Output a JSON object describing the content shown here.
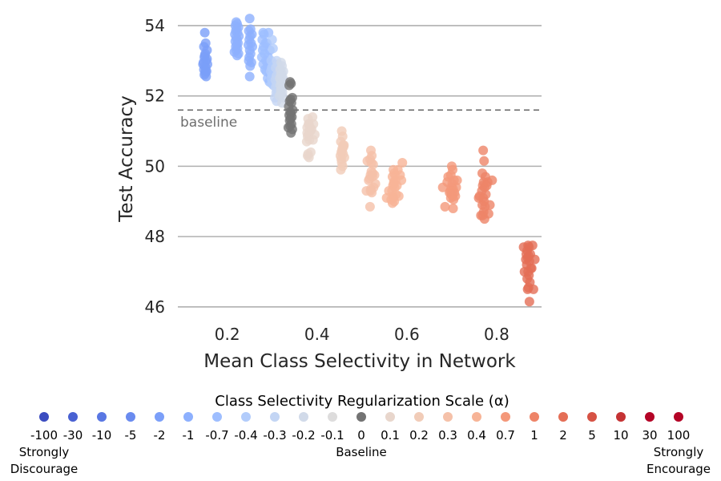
{
  "chart_data": {
    "type": "scatter",
    "xlabel": "Mean Class Selectivity in Network",
    "ylabel": "Test Accuracy",
    "xlim": [
      0.09,
      0.9
    ],
    "ylim": [
      45.7,
      54.5
    ],
    "xticks": [
      0.2,
      0.4,
      0.6,
      0.8
    ],
    "yticks": [
      46,
      48,
      50,
      52,
      54
    ],
    "grid": "horizontal",
    "baseline": {
      "value": 51.6,
      "label": "baseline"
    },
    "legend": {
      "title": "Class Selectivity Regularization Scale (α)",
      "placement": "bottom",
      "left_note": [
        "Strongly",
        "Discourage"
      ],
      "center_note": "Baseline",
      "right_note": [
        "Strongly",
        "Encourage"
      ]
    },
    "series": [
      {
        "name": "-100",
        "color": "#3b4cc0",
        "x": [],
        "y": []
      },
      {
        "name": "-30",
        "color": "#4961d2",
        "x": [],
        "y": []
      },
      {
        "name": "-10",
        "color": "#5977e3",
        "x": [],
        "y": []
      },
      {
        "name": "-5",
        "color": "#6a8bef",
        "x": [],
        "y": []
      },
      {
        "name": "-2",
        "color": "#7b9ff9",
        "x": [
          0.15,
          0.152,
          0.148,
          0.155,
          0.151,
          0.149,
          0.153,
          0.147,
          0.156,
          0.15,
          0.152,
          0.148,
          0.154,
          0.151,
          0.149,
          0.153,
          0.15,
          0.146,
          0.155,
          0.152
        ],
        "y": [
          53.8,
          53.5,
          53.4,
          53.3,
          53.2,
          53.1,
          53.0,
          52.95,
          52.9,
          52.85,
          52.8,
          52.75,
          52.7,
          52.65,
          52.6,
          52.55,
          53.15,
          52.9,
          53.05,
          52.7
        ]
      },
      {
        "name": "-1",
        "color": "#8db0fe",
        "x": [
          0.22,
          0.222,
          0.218,
          0.225,
          0.221,
          0.219,
          0.223,
          0.217,
          0.226,
          0.22,
          0.222,
          0.218,
          0.224,
          0.221,
          0.219,
          0.223,
          0.22,
          0.216,
          0.225,
          0.222,
          0.25,
          0.252,
          0.248,
          0.255,
          0.251,
          0.249,
          0.253,
          0.247,
          0.256,
          0.25,
          0.252,
          0.248,
          0.254,
          0.251,
          0.249,
          0.25
        ],
        "y": [
          54.1,
          54.05,
          54.0,
          53.95,
          53.9,
          53.85,
          53.8,
          53.75,
          53.7,
          53.65,
          53.6,
          53.55,
          53.5,
          53.45,
          53.4,
          53.35,
          53.3,
          53.25,
          53.2,
          53.15,
          54.2,
          53.9,
          53.85,
          53.75,
          53.7,
          53.6,
          53.5,
          53.45,
          53.4,
          53.3,
          53.2,
          53.0,
          52.95,
          52.85,
          53.1,
          52.55
        ]
      },
      {
        "name": "-0.7",
        "color": "#9ebeff",
        "x": [
          0.28,
          0.282,
          0.278,
          0.285,
          0.281,
          0.279,
          0.283,
          0.277,
          0.286,
          0.28,
          0.29,
          0.292,
          0.288,
          0.295,
          0.291,
          0.289,
          0.293,
          0.287,
          0.296,
          0.29,
          0.284,
          0.294
        ],
        "y": [
          53.8,
          53.75,
          53.6,
          53.5,
          53.4,
          53.3,
          53.2,
          53.1,
          53.0,
          52.9,
          52.85,
          53.8,
          53.5,
          53.3,
          53.1,
          52.95,
          52.8,
          52.7,
          52.6,
          52.5,
          52.75,
          52.4
        ]
      },
      {
        "name": "-0.4",
        "color": "#b2ccfb",
        "x": [
          0.3,
          0.302,
          0.298,
          0.305,
          0.301,
          0.299,
          0.303,
          0.297,
          0.306,
          0.3,
          0.302,
          0.298,
          0.304,
          0.301,
          0.299,
          0.303
        ],
        "y": [
          53.6,
          53.35,
          53.0,
          52.9,
          52.85,
          52.8,
          52.75,
          52.7,
          52.65,
          52.6,
          52.55,
          52.5,
          52.45,
          52.4,
          52.35,
          52.3
        ]
      },
      {
        "name": "-0.3",
        "color": "#c3d5f4",
        "x": [
          0.31,
          0.312,
          0.308,
          0.315,
          0.311,
          0.309,
          0.313,
          0.307,
          0.316,
          0.31,
          0.312,
          0.308,
          0.314,
          0.311,
          0.309,
          0.313,
          0.31,
          0.306
        ],
        "y": [
          53.0,
          52.9,
          52.8,
          52.7,
          52.6,
          52.55,
          52.5,
          52.45,
          52.4,
          52.35,
          52.3,
          52.25,
          52.2,
          52.15,
          52.1,
          52.05,
          51.85,
          51.95
        ]
      },
      {
        "name": "-0.2",
        "color": "#d1dae9",
        "x": [
          0.32,
          0.322,
          0.318,
          0.325,
          0.321,
          0.319,
          0.323,
          0.317,
          0.326,
          0.32,
          0.322,
          0.318,
          0.324,
          0.321,
          0.319,
          0.323,
          0.32,
          0.316,
          0.325,
          0.322
        ],
        "y": [
          52.95,
          52.85,
          52.75,
          52.7,
          52.65,
          52.6,
          52.55,
          52.5,
          52.45,
          52.4,
          52.35,
          52.3,
          52.25,
          52.2,
          52.15,
          52.1,
          52.05,
          52.0,
          51.95,
          51.8
        ]
      },
      {
        "name": "-0.1",
        "color": "#dddcdc",
        "x": [],
        "y": []
      },
      {
        "name": "0",
        "color": "#737373",
        "x": [
          0.34,
          0.342,
          0.338,
          0.345,
          0.341,
          0.339,
          0.343,
          0.337,
          0.346,
          0.34,
          0.342,
          0.338,
          0.344,
          0.341,
          0.339,
          0.343,
          0.34,
          0.336,
          0.345,
          0.342
        ],
        "y": [
          52.4,
          52.35,
          52.3,
          51.95,
          51.9,
          51.85,
          51.8,
          51.7,
          51.6,
          51.55,
          51.5,
          51.45,
          51.4,
          51.35,
          51.3,
          51.2,
          51.15,
          51.1,
          51.05,
          50.95
        ]
      },
      {
        "name": "0.1",
        "color": "#e8d6cc",
        "x": [
          0.38,
          0.382,
          0.378,
          0.385,
          0.381,
          0.379,
          0.383,
          0.377,
          0.386,
          0.38,
          0.382,
          0.378,
          0.384,
          0.381,
          0.379,
          0.39,
          0.392,
          0.388,
          0.395,
          0.391
        ],
        "y": [
          51.35,
          51.2,
          51.1,
          51.0,
          50.9,
          50.85,
          50.75,
          50.7,
          50.4,
          50.35,
          50.25,
          50.95,
          51.1,
          51.2,
          50.3,
          51.4,
          51.2,
          51.05,
          50.9,
          50.75
        ]
      },
      {
        "name": "0.2",
        "color": "#f1ccb8",
        "x": [
          0.455,
          0.457,
          0.453,
          0.46,
          0.456,
          0.454,
          0.458,
          0.452,
          0.461,
          0.455,
          0.457,
          0.453,
          0.459,
          0.456,
          0.454,
          0.458
        ],
        "y": [
          51.0,
          50.85,
          50.7,
          50.6,
          50.5,
          50.4,
          50.35,
          50.3,
          50.25,
          50.1,
          50.0,
          49.9,
          50.55,
          50.45,
          50.2,
          50.6
        ]
      },
      {
        "name": "0.3",
        "color": "#f5c1a9",
        "x": [
          0.52,
          0.522,
          0.518,
          0.525,
          0.521,
          0.519,
          0.523,
          0.517,
          0.526,
          0.52,
          0.522,
          0.518,
          0.524,
          0.521,
          0.519,
          0.51,
          0.53,
          0.515,
          0.528,
          0.512
        ],
        "y": [
          50.45,
          50.3,
          50.2,
          50.05,
          49.85,
          49.75,
          49.7,
          49.65,
          49.4,
          49.35,
          49.25,
          48.85,
          49.8,
          50.1,
          49.3,
          49.3,
          49.5,
          49.6,
          49.75,
          50.15
        ]
      },
      {
        "name": "0.4",
        "color": "#f7b497",
        "x": [
          0.57,
          0.572,
          0.568,
          0.575,
          0.571,
          0.569,
          0.573,
          0.567,
          0.576,
          0.57,
          0.572,
          0.568,
          0.574,
          0.571,
          0.569,
          0.58,
          0.585,
          0.59,
          0.56,
          0.565,
          0.578,
          0.582,
          0.555,
          0.588
        ],
        "y": [
          49.9,
          49.8,
          49.7,
          49.6,
          49.5,
          49.45,
          49.4,
          49.3,
          49.2,
          49.1,
          49.0,
          48.95,
          49.75,
          49.55,
          49.15,
          49.9,
          49.75,
          50.1,
          49.3,
          49.05,
          49.45,
          49.15,
          49.1,
          49.6
        ]
      },
      {
        "name": "0.7",
        "color": "#f4987a",
        "x": [
          0.7,
          0.702,
          0.698,
          0.705,
          0.701,
          0.699,
          0.703,
          0.697,
          0.706,
          0.7,
          0.702,
          0.698,
          0.704,
          0.701,
          0.699,
          0.703,
          0.69,
          0.71,
          0.695,
          0.708,
          0.68,
          0.685,
          0.712,
          0.692
        ],
        "y": [
          50.0,
          49.9,
          49.75,
          49.6,
          49.5,
          49.4,
          49.35,
          49.3,
          49.25,
          49.2,
          49.15,
          49.1,
          49.05,
          49.3,
          49.2,
          48.8,
          49.55,
          49.4,
          49.25,
          49.15,
          49.4,
          48.85,
          49.6,
          49.7
        ]
      },
      {
        "name": "1",
        "color": "#ee8468",
        "x": [
          0.77,
          0.772,
          0.768,
          0.775,
          0.771,
          0.769,
          0.773,
          0.767,
          0.776,
          0.77,
          0.772,
          0.768,
          0.774,
          0.771,
          0.769,
          0.773,
          0.76,
          0.765,
          0.78,
          0.785,
          0.79,
          0.762,
          0.778,
          0.782
        ],
        "y": [
          50.45,
          50.15,
          49.8,
          49.7,
          49.55,
          49.45,
          49.4,
          49.3,
          49.2,
          49.1,
          49.0,
          48.9,
          48.85,
          48.7,
          48.6,
          48.5,
          49.1,
          48.6,
          49.55,
          48.9,
          49.6,
          49.15,
          49.45,
          48.65
        ]
      },
      {
        "name": "2",
        "color": "#e46e56",
        "x": [
          0.87,
          0.872,
          0.868,
          0.875,
          0.871,
          0.869,
          0.873,
          0.867,
          0.876,
          0.87,
          0.872,
          0.868,
          0.874,
          0.871,
          0.869,
          0.873,
          0.86,
          0.865,
          0.88,
          0.885,
          0.862,
          0.878,
          0.882,
          0.866
        ],
        "y": [
          47.75,
          47.7,
          47.6,
          47.5,
          47.45,
          47.4,
          47.3,
          47.2,
          47.1,
          47.0,
          46.9,
          46.8,
          46.7,
          46.55,
          46.5,
          46.15,
          47.7,
          47.35,
          47.75,
          47.35,
          47.0,
          47.1,
          46.5,
          47.5
        ]
      },
      {
        "name": "5",
        "color": "#d65244",
        "x": [],
        "y": []
      },
      {
        "name": "10",
        "color": "#c53334",
        "x": [],
        "y": []
      },
      {
        "name": "30",
        "color": "#b40426",
        "x": [],
        "y": []
      },
      {
        "name": "100",
        "color": "#b40426",
        "x": [],
        "y": []
      }
    ]
  }
}
